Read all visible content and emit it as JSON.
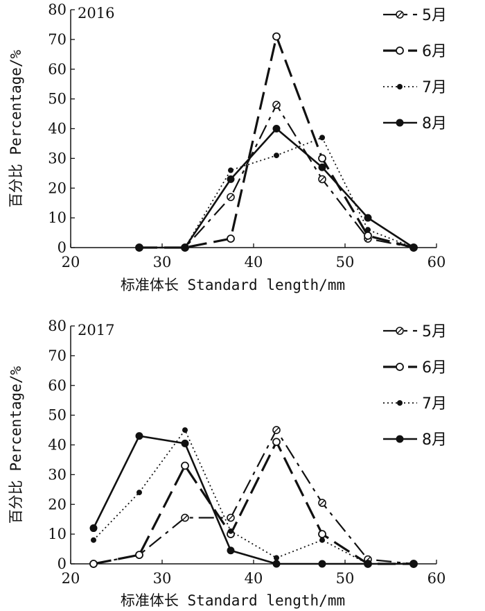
{
  "chart_data": [
    {
      "type": "line",
      "title": "2016",
      "xlabel": "标准体长 Standard length/mm",
      "ylabel": "百分比 Percentage/%",
      "xlim": [
        20,
        60
      ],
      "ylim": [
        0,
        80
      ],
      "xticks": [
        "20",
        "30",
        "40",
        "50",
        "60"
      ],
      "yticks": [
        "0",
        "10",
        "20",
        "30",
        "40",
        "50",
        "60",
        "70",
        "80"
      ],
      "x": [
        27.5,
        32.5,
        37.5,
        42.5,
        47.5,
        52.5,
        57.5
      ],
      "legend_position": "right",
      "series": [
        {
          "name": "5月",
          "values": [
            0,
            0,
            17,
            48,
            23,
            3,
            0
          ]
        },
        {
          "name": "6月",
          "values": [
            0,
            0,
            3,
            71,
            30,
            4,
            0
          ]
        },
        {
          "name": "7月",
          "values": [
            0,
            0,
            26,
            31,
            37,
            6,
            0
          ]
        },
        {
          "name": "8月",
          "values": [
            0,
            0,
            23,
            40,
            27,
            10,
            0
          ]
        }
      ]
    },
    {
      "type": "line",
      "title": "2017",
      "xlabel": "标准体长 Standard length/mm",
      "ylabel": "百分比 Percentage/%",
      "xlim": [
        20,
        60
      ],
      "ylim": [
        0,
        80
      ],
      "xticks": [
        "20",
        "30",
        "40",
        "50",
        "60"
      ],
      "yticks": [
        "0",
        "10",
        "20",
        "30",
        "40",
        "50",
        "60",
        "70",
        "80"
      ],
      "x": [
        22.5,
        27.5,
        32.5,
        37.5,
        42.5,
        47.5,
        52.5,
        57.5
      ],
      "legend_position": "right",
      "series": [
        {
          "name": "5月",
          "values": [
            0,
            3,
            15.5,
            15.5,
            45,
            20.5,
            1.5,
            0
          ]
        },
        {
          "name": "6月",
          "values": [
            0,
            3,
            33,
            10,
            41,
            10,
            0,
            0
          ]
        },
        {
          "name": "7月",
          "values": [
            8,
            24,
            45,
            11,
            2,
            8,
            0,
            0
          ]
        },
        {
          "name": "8月",
          "values": [
            12,
            43,
            40.5,
            4.5,
            0,
            0,
            0,
            0
          ]
        }
      ]
    }
  ]
}
